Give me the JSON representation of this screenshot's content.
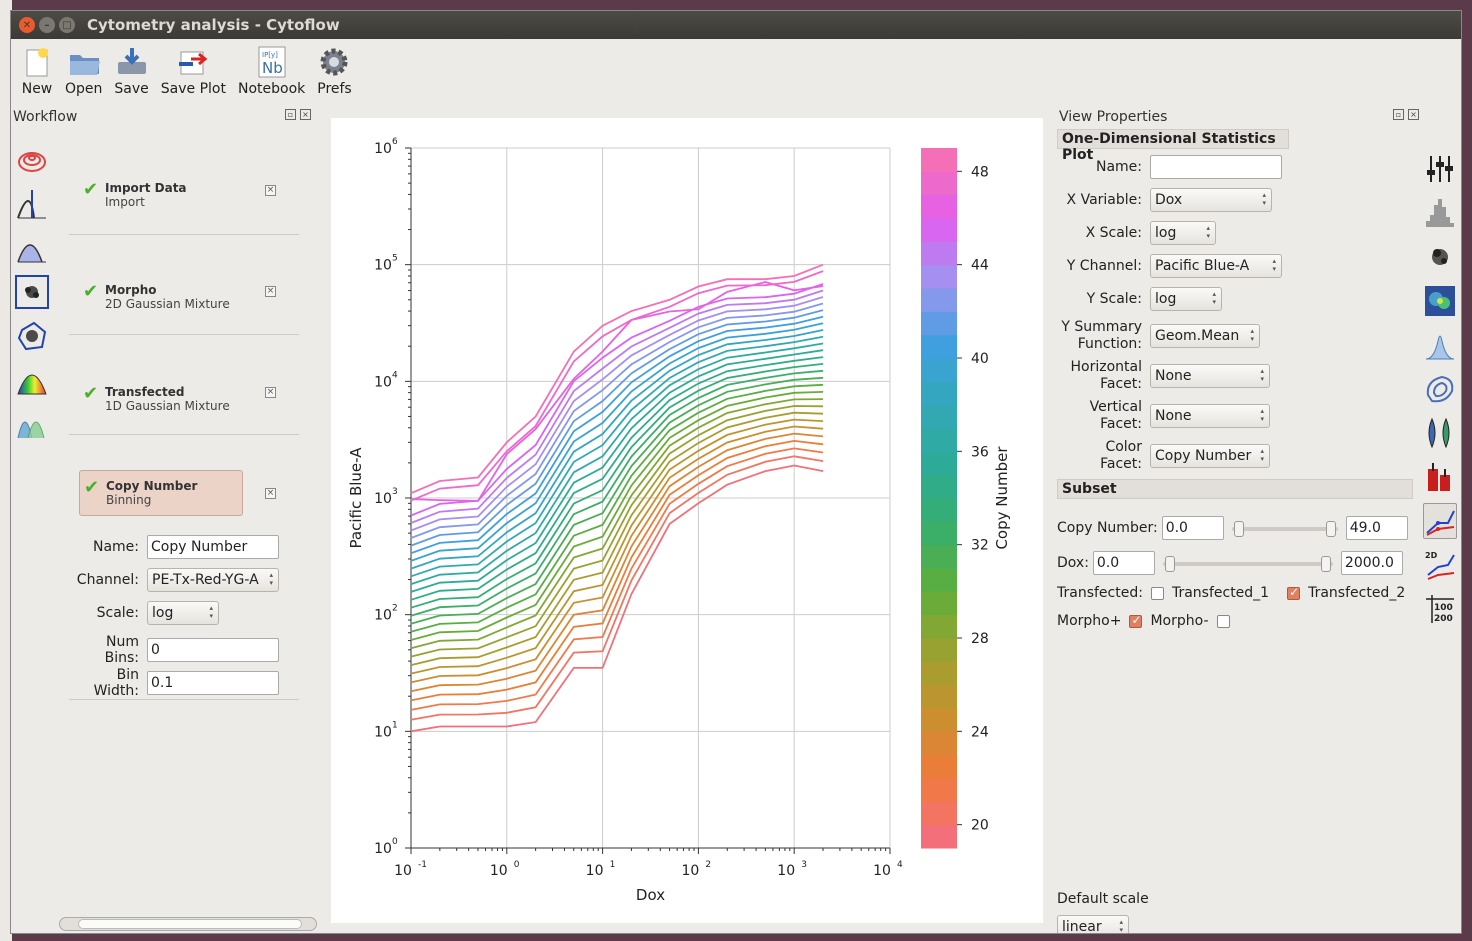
{
  "window": {
    "title": "Cytometry analysis - Cytoflow"
  },
  "toolbar": {
    "items": [
      {
        "label": "New",
        "icon": "new-file-icon"
      },
      {
        "label": "Open",
        "icon": "open-folder-icon"
      },
      {
        "label": "Save",
        "icon": "save-icon"
      },
      {
        "label": "Save Plot",
        "icon": "save-plot-icon"
      },
      {
        "label": "Notebook",
        "icon": "notebook-icon",
        "icon_text_top": "IP[y]",
        "icon_text_main": "Nb"
      },
      {
        "label": "Prefs",
        "icon": "gear-icon"
      }
    ]
  },
  "workflow": {
    "title": "Workflow",
    "ops": [
      {
        "name": "Import Data",
        "type": "Import",
        "valid": true
      },
      {
        "name": "Morpho",
        "type": "2D Gaussian Mixture",
        "valid": true
      },
      {
        "name": "Transfected",
        "type": "1D Gaussian Mixture",
        "valid": true
      },
      {
        "name": "Copy Number",
        "type": "Binning",
        "valid": true
      }
    ],
    "close_glyph": "×",
    "op_icons": [
      "import-icon",
      "threshold-icon",
      "range-icon",
      "polygon-icon",
      "2d-gaussian-icon",
      "density-gate-icon",
      "gaussian-mixture-icon"
    ],
    "form": {
      "name_label": "Name:",
      "name_value": "Copy Number",
      "channel_label": "Channel:",
      "channel_value": "PE-Tx-Red-YG-A",
      "scale_label": "Scale:",
      "scale_value": "log",
      "num_bins_label": "Num Bins:",
      "num_bins_value": "0",
      "bin_width_label": "Bin Width:",
      "bin_width_value": "0.1"
    }
  },
  "view_properties": {
    "title": "View Properties",
    "plot_type": "One-Dimensional Statistics Plot",
    "name_label": "Name:",
    "name_value": "",
    "x_variable_label": "X Variable:",
    "x_variable_value": "Dox",
    "x_scale_label": "X Scale:",
    "x_scale_value": "log",
    "y_channel_label": "Y Channel:",
    "y_channel_value": "Pacific Blue-A",
    "y_scale_label": "Y Scale:",
    "y_scale_value": "log",
    "y_summary_label_1": "Y Summary",
    "y_summary_label_2": "Function:",
    "y_summary_value": "Geom.Mean",
    "h_facet_label_1": "Horizontal",
    "h_facet_label_2": "Facet:",
    "h_facet_value": "None",
    "v_facet_label_1": "Vertical",
    "v_facet_label_2": "Facet:",
    "v_facet_value": "None",
    "color_facet_label_1": "Color",
    "color_facet_label_2": "Facet:",
    "color_facet_value": "Copy Number",
    "subset_title": "Subset",
    "copy_number_label": "Copy Number:",
    "copy_number_min": "0.0",
    "copy_number_max": "49.0",
    "dox_label": "Dox:",
    "dox_min": "0.0",
    "dox_max": "2000.0",
    "transfected_label": "Transfected:",
    "transfected_1_label": "Transfected_1",
    "transfected_1_checked": false,
    "transfected_2_label": "Transfected_2",
    "transfected_2_checked": true,
    "morpho_plus_label": "Morpho+",
    "morpho_plus_checked": true,
    "morpho_minus_label": "Morpho-",
    "morpho_minus_checked": false,
    "default_scale_label": "Default scale",
    "default_scale_value": "linear"
  },
  "view_icons": [
    "view-settings-icon",
    "histogram-icon",
    "scatterplot-icon",
    "density-icon",
    "kde-icon",
    "2d-kde-icon",
    "violin-icon",
    "bar-chart-icon",
    "1d-stats-icon",
    "2d-stats-icon",
    "table-view-icon"
  ],
  "view_icon_text": {
    "two_d": "2D",
    "table_top": "100",
    "table_bottom": "200"
  },
  "chart_data": {
    "type": "line",
    "xlabel": "Dox",
    "ylabel": "Pacific Blue-A",
    "x_scale": "log",
    "y_scale": "log",
    "xlim": [
      0.1,
      10000
    ],
    "ylim": [
      1,
      1000000
    ],
    "x_tick_labels": [
      "10",
      "10",
      "10",
      "10",
      "10",
      "10"
    ],
    "x_tick_exponents": [
      "-1",
      "0",
      "1",
      "2",
      "3",
      "4"
    ],
    "y_tick_labels": [
      "10",
      "10",
      "10",
      "10",
      "10",
      "10",
      "10"
    ],
    "y_tick_exponents": [
      "0",
      "1",
      "2",
      "3",
      "4",
      "5",
      "6"
    ],
    "grid": true,
    "x": [
      0.1,
      0.2,
      0.5,
      1,
      2,
      5,
      10,
      20,
      50,
      100,
      200,
      500,
      1000,
      2000
    ],
    "series_count": 30,
    "low_series_values": [
      10,
      11,
      11,
      11,
      12,
      35,
      35,
      150,
      600,
      900,
      1300,
      1700,
      1900,
      1700
    ],
    "high_series_values": [
      1100,
      1400,
      1500,
      3000,
      5000,
      18000,
      30000,
      40000,
      50000,
      65000,
      75000,
      75000,
      80000,
      100000
    ],
    "colorbar": {
      "label": "Copy Number",
      "min": 19,
      "max": 49,
      "ticks": [
        "20",
        "24",
        "28",
        "32",
        "36",
        "40",
        "44",
        "48"
      ],
      "colors": [
        "#f36f79",
        "#f07b3a",
        "#c8902e",
        "#9aa230",
        "#5fae3a",
        "#38ae6a",
        "#2eab96",
        "#33a8b8",
        "#3f9fe0",
        "#9e95f0",
        "#e15ef0",
        "#f56fb6"
      ]
    }
  }
}
